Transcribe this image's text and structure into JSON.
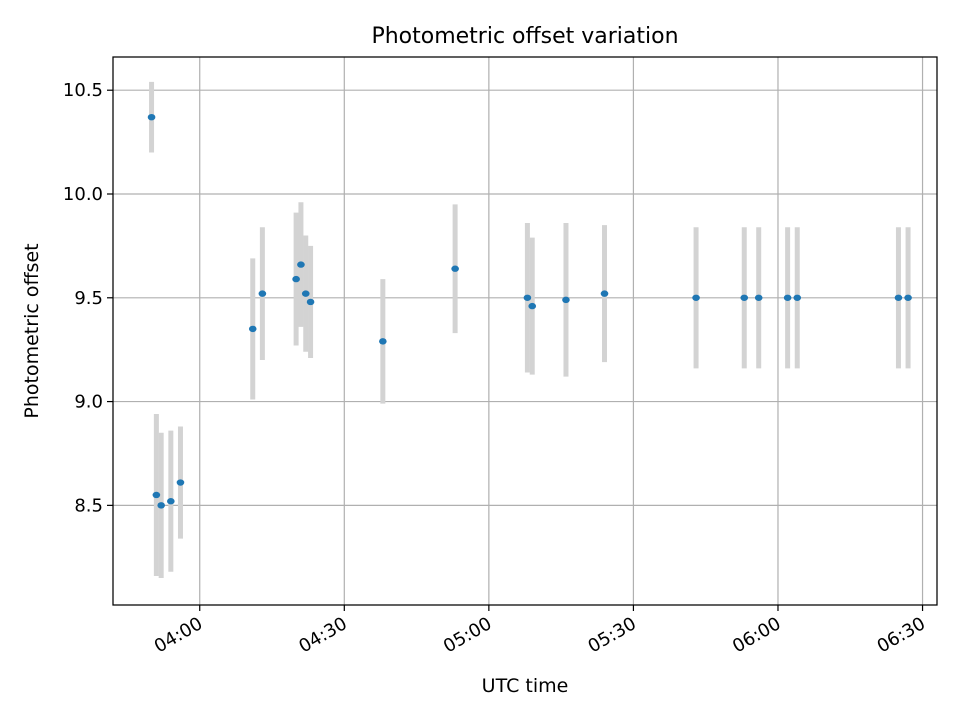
{
  "chart_data": {
    "type": "scatter",
    "title": "Photometric offset variation",
    "xlabel": "UTC time",
    "ylabel": "Photometric offset",
    "x_is_time": true,
    "xlim": [
      "03:42",
      "06:33"
    ],
    "ylim": [
      8.02,
      10.66
    ],
    "grid": true,
    "xticks": [
      {
        "value": "04:00",
        "label": "04:00"
      },
      {
        "value": "04:30",
        "label": "04:30"
      },
      {
        "value": "05:00",
        "label": "05:00"
      },
      {
        "value": "05:30",
        "label": "05:30"
      },
      {
        "value": "06:00",
        "label": "06:00"
      },
      {
        "value": "06:30",
        "label": "06:30"
      }
    ],
    "yticks": [
      {
        "value": 8.5,
        "label": "8.5"
      },
      {
        "value": 9.0,
        "label": "9.0"
      },
      {
        "value": 9.5,
        "label": "9.5"
      },
      {
        "value": 10.0,
        "label": "10.0"
      },
      {
        "value": 10.5,
        "label": "10.5"
      }
    ],
    "colors": {
      "point": "#1f77b4",
      "errorbar": "#d3d3d3",
      "grid": "#b0b0b0"
    },
    "points": [
      {
        "x": "03:50",
        "y": 10.37,
        "err": 0.17
      },
      {
        "x": "03:51",
        "y": 8.55,
        "err": 0.39
      },
      {
        "x": "03:52",
        "y": 8.5,
        "err": 0.35
      },
      {
        "x": "03:54",
        "y": 8.52,
        "err": 0.34
      },
      {
        "x": "03:56",
        "y": 8.61,
        "err": 0.27
      },
      {
        "x": "04:11",
        "y": 9.35,
        "err": 0.34
      },
      {
        "x": "04:13",
        "y": 9.52,
        "err": 0.32
      },
      {
        "x": "04:20",
        "y": 9.59,
        "err": 0.32
      },
      {
        "x": "04:21",
        "y": 9.66,
        "err": 0.3
      },
      {
        "x": "04:22",
        "y": 9.52,
        "err": 0.28
      },
      {
        "x": "04:23",
        "y": 9.48,
        "err": 0.27
      },
      {
        "x": "04:38",
        "y": 9.29,
        "err": 0.3
      },
      {
        "x": "04:53",
        "y": 9.64,
        "err": 0.31
      },
      {
        "x": "05:08",
        "y": 9.5,
        "err": 0.36
      },
      {
        "x": "05:09",
        "y": 9.46,
        "err": 0.33
      },
      {
        "x": "05:16",
        "y": 9.49,
        "err": 0.37
      },
      {
        "x": "05:24",
        "y": 9.52,
        "err": 0.33
      },
      {
        "x": "05:43",
        "y": 9.5,
        "err": 0.34
      },
      {
        "x": "05:53",
        "y": 9.5,
        "err": 0.34
      },
      {
        "x": "05:56",
        "y": 9.5,
        "err": 0.34
      },
      {
        "x": "06:02",
        "y": 9.5,
        "err": 0.34
      },
      {
        "x": "06:04",
        "y": 9.5,
        "err": 0.34
      },
      {
        "x": "06:25",
        "y": 9.5,
        "err": 0.34
      },
      {
        "x": "06:27",
        "y": 9.5,
        "err": 0.34
      }
    ]
  }
}
